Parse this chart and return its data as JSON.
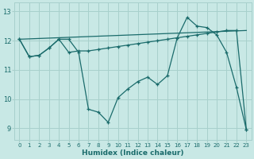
{
  "xlabel": "Humidex (Indice chaleur)",
  "xlim": [
    -0.5,
    23.5
  ],
  "ylim": [
    8.6,
    13.3
  ],
  "xticks": [
    0,
    1,
    2,
    3,
    4,
    5,
    6,
    7,
    8,
    9,
    10,
    11,
    12,
    13,
    14,
    15,
    16,
    17,
    18,
    19,
    20,
    21,
    22,
    23
  ],
  "yticks": [
    9,
    10,
    11,
    12,
    13
  ],
  "bg_color": "#c8e8e5",
  "grid_color": "#a8d0cc",
  "line_color": "#1a6b6b",
  "line1_x": [
    0,
    1,
    2,
    3,
    4,
    5,
    6,
    7,
    8,
    9,
    10,
    11,
    12,
    13,
    14,
    15,
    16,
    17,
    18,
    19,
    20,
    21,
    22,
    23
  ],
  "line1_y": [
    12.05,
    11.45,
    11.5,
    11.75,
    12.05,
    12.05,
    11.6,
    9.65,
    9.55,
    9.2,
    10.05,
    10.35,
    10.6,
    10.75,
    10.5,
    10.8,
    12.1,
    12.8,
    12.5,
    12.45,
    12.2,
    11.6,
    10.4,
    8.95
  ],
  "line2_x": [
    0,
    1,
    2,
    3,
    4,
    5,
    6,
    7,
    8,
    9,
    10,
    11,
    12,
    13,
    14,
    15,
    16,
    17,
    18,
    19,
    20,
    21,
    22,
    23
  ],
  "line2_y": [
    12.05,
    11.45,
    11.5,
    11.75,
    12.05,
    11.6,
    11.65,
    11.65,
    11.7,
    11.75,
    11.8,
    11.85,
    11.9,
    11.95,
    12.0,
    12.05,
    12.1,
    12.15,
    12.2,
    12.25,
    12.3,
    12.35,
    12.35,
    8.95
  ]
}
